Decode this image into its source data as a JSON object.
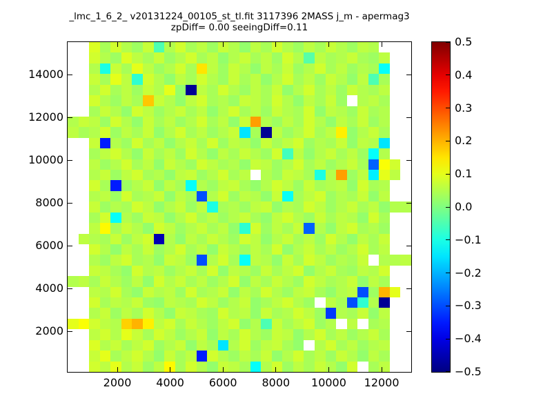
{
  "title": {
    "line1": "_lmc_1_6_2_ v20131224_00105_st_tl.fit 3117396 2MASS j_m - apermag3",
    "line2": "zpDiff= 0.00 seeingDiff=0.11"
  },
  "chart_data": {
    "type": "heatmap",
    "colormap": "jet",
    "xlabel": "",
    "ylabel": "",
    "xlim": [
      120,
      13120
    ],
    "ylim": [
      100,
      15520
    ],
    "x_ticks": [
      2000,
      4000,
      6000,
      8000,
      10000,
      12000
    ],
    "y_ticks": [
      2000,
      4000,
      6000,
      8000,
      10000,
      12000,
      14000
    ],
    "grid_on": false,
    "colorbar": {
      "vmin": -0.5,
      "vmax": 0.5,
      "tick_labels": [
        "0.5",
        "0.4",
        "0.3",
        "0.2",
        "0.1",
        "0.0",
        "−0.1",
        "−0.2",
        "−0.3",
        "−0.4",
        "−0.5"
      ]
    },
    "grid": {
      "n_cols": 32,
      "n_rows": 31,
      "values": [
        [
          null,
          null,
          0.09,
          0.04,
          0.08,
          0.05,
          0.03,
          0.07,
          -0.05,
          0.05,
          0.08,
          0.04,
          0.06,
          0.03,
          0.07,
          0.05,
          0.02,
          0.06,
          0.04,
          0.08,
          0.05,
          0.03,
          0.06,
          0.04,
          0.07,
          0.05,
          0.03,
          0.06,
          0.05,
          null,
          null,
          null
        ],
        [
          null,
          null,
          0.08,
          0.05,
          0.03,
          0.09,
          0.06,
          0.04,
          0.07,
          0.03,
          0.05,
          0.08,
          0.04,
          0.06,
          0.02,
          0.05,
          0.07,
          0.04,
          0.06,
          0.03,
          0.08,
          0.05,
          -0.04,
          0.06,
          0.04,
          0.05,
          0.07,
          0.04,
          0.03,
          0.06,
          null,
          null
        ],
        [
          null,
          null,
          0.05,
          -0.1,
          0.07,
          0.04,
          0.1,
          0.06,
          0.03,
          0.05,
          0.08,
          0.04,
          0.15,
          0.06,
          0.03,
          0.07,
          0.05,
          0.02,
          0.06,
          0.04,
          0.07,
          0.03,
          0.05,
          0.08,
          0.04,
          0.06,
          0.03,
          0.05,
          0.04,
          -0.12,
          null,
          null
        ],
        [
          null,
          null,
          0.07,
          0.04,
          0.1,
          0.06,
          -0.08,
          0.08,
          0.05,
          0.02,
          0.06,
          0.04,
          0.08,
          0.05,
          0.03,
          0.07,
          0.04,
          0.06,
          0.02,
          0.05,
          0.08,
          0.04,
          0.06,
          0.03,
          0.07,
          0.05,
          0.02,
          0.06,
          -0.05,
          0.04,
          null,
          null
        ],
        [
          null,
          null,
          0.05,
          0.08,
          0.04,
          0.06,
          0.03,
          0.07,
          0.05,
          0.1,
          0.02,
          -0.48,
          0.06,
          0.04,
          0.08,
          0.05,
          0.03,
          0.06,
          0.04,
          0.07,
          0.02,
          0.05,
          0.08,
          0.04,
          0.06,
          0.03,
          0.07,
          0.05,
          0.04,
          0.06,
          null,
          null
        ],
        [
          null,
          null,
          0.08,
          0.05,
          0.03,
          0.06,
          0.04,
          0.18,
          0.07,
          0.05,
          0.02,
          0.06,
          0.08,
          0.04,
          0.05,
          0.03,
          0.07,
          0.06,
          0.04,
          0.08,
          0.05,
          0.02,
          0.06,
          0.04,
          0.07,
          0.03,
          null,
          0.05,
          0.06,
          0.04,
          null,
          null
        ],
        [
          null,
          null,
          0.04,
          0.07,
          0.05,
          0.02,
          0.08,
          0.06,
          0.03,
          0.05,
          0.07,
          0.04,
          0.06,
          0.02,
          0.05,
          0.08,
          0.04,
          0.06,
          0.03,
          0.07,
          0.05,
          0.04,
          0.08,
          0.02,
          0.06,
          0.05,
          0.03,
          0.07,
          0.04,
          0.05,
          null,
          null
        ],
        [
          0.05,
          0.07,
          0.06,
          0.03,
          0.08,
          0.05,
          0.02,
          0.07,
          0.04,
          0.06,
          0.03,
          0.05,
          0.08,
          0.04,
          0.06,
          0.02,
          0.07,
          0.22,
          0.05,
          0.03,
          0.06,
          0.04,
          0.08,
          0.05,
          0.02,
          0.06,
          0.04,
          0.07,
          0.03,
          0.05,
          null,
          null
        ],
        [
          0.06,
          0.04,
          0.05,
          0.08,
          0.03,
          0.06,
          0.04,
          0.07,
          0.02,
          0.05,
          0.08,
          0.04,
          0.06,
          0.03,
          0.05,
          0.07,
          -0.15,
          0.04,
          -0.48,
          0.06,
          0.03,
          0.05,
          0.08,
          0.04,
          0.06,
          0.14,
          0.02,
          0.05,
          0.07,
          0.04,
          null,
          null
        ],
        [
          null,
          null,
          0.07,
          -0.35,
          0.05,
          0.03,
          0.08,
          0.04,
          0.06,
          0.02,
          0.05,
          0.07,
          0.04,
          0.08,
          0.03,
          0.06,
          0.05,
          0.02,
          0.07,
          0.04,
          0.06,
          0.08,
          0.03,
          0.05,
          0.04,
          0.07,
          0.02,
          0.06,
          0.05,
          -0.15,
          null,
          null
        ],
        [
          null,
          null,
          0.04,
          0.06,
          0.08,
          0.05,
          0.02,
          0.07,
          0.04,
          0.06,
          0.03,
          0.08,
          0.05,
          0.02,
          0.06,
          0.04,
          0.07,
          0.05,
          0.03,
          0.08,
          -0.06,
          0.06,
          0.02,
          0.05,
          0.07,
          0.04,
          0.06,
          0.03,
          -0.12,
          0.05,
          null,
          null
        ],
        [
          null,
          null,
          0.06,
          0.03,
          0.05,
          0.08,
          0.04,
          0.06,
          0.02,
          0.07,
          0.05,
          0.03,
          0.08,
          0.06,
          0.04,
          0.05,
          0.02,
          0.07,
          0.06,
          0.03,
          0.05,
          0.08,
          0.04,
          0.06,
          0.03,
          0.05,
          0.07,
          0.04,
          -0.28,
          0.12,
          0.08,
          null
        ],
        [
          null,
          null,
          0.05,
          0.07,
          0.03,
          0.06,
          0.08,
          0.04,
          0.05,
          0.02,
          0.06,
          0.07,
          0.03,
          0.05,
          0.08,
          0.04,
          0.06,
          null,
          0.05,
          0.03,
          0.07,
          0.06,
          0.04,
          -0.1,
          0.05,
          0.22,
          0.03,
          0.06,
          -0.14,
          0.1,
          0.06,
          null
        ],
        [
          null,
          null,
          0.08,
          0.04,
          -0.35,
          0.03,
          0.05,
          0.07,
          0.02,
          0.06,
          0.04,
          -0.12,
          0.05,
          0.03,
          0.06,
          0.07,
          0.04,
          0.02,
          0.05,
          0.08,
          0.06,
          0.03,
          0.07,
          0.04,
          0.05,
          0.06,
          0.02,
          0.08,
          0.04,
          0.05,
          null,
          null
        ],
        [
          null,
          null,
          0.05,
          0.06,
          0.03,
          0.08,
          0.04,
          0.05,
          0.07,
          0.02,
          0.06,
          0.04,
          -0.3,
          0.05,
          0.08,
          0.03,
          0.06,
          0.05,
          0.02,
          0.07,
          -0.12,
          0.04,
          0.06,
          0.08,
          0.03,
          0.05,
          0.04,
          0.07,
          0.02,
          0.06,
          null,
          null
        ],
        [
          null,
          null,
          0.07,
          0.03,
          0.05,
          0.04,
          0.08,
          0.06,
          0.02,
          0.05,
          0.07,
          0.03,
          0.06,
          -0.1,
          0.04,
          0.05,
          0.03,
          0.06,
          0.07,
          0.02,
          0.05,
          0.04,
          0.08,
          0.06,
          0.03,
          0.05,
          0.07,
          0.04,
          0.06,
          0.02,
          0.05,
          0.05
        ],
        [
          null,
          null,
          0.04,
          0.08,
          -0.12,
          0.05,
          0.03,
          0.07,
          0.06,
          0.02,
          0.05,
          0.08,
          0.04,
          0.06,
          0.03,
          0.05,
          0.07,
          0.04,
          0.02,
          0.06,
          0.08,
          0.05,
          0.03,
          0.07,
          0.04,
          0.06,
          0.05,
          0.02,
          0.08,
          0.04,
          null,
          null
        ],
        [
          null,
          null,
          0.06,
          0.13,
          0.04,
          0.07,
          0.05,
          0.02,
          0.08,
          0.06,
          0.03,
          0.05,
          0.07,
          0.04,
          0.06,
          0.02,
          -0.08,
          0.08,
          0.03,
          0.06,
          0.04,
          0.07,
          -0.28,
          0.05,
          0.02,
          0.06,
          0.08,
          0.04,
          0.05,
          0.03,
          null,
          null
        ],
        [
          null,
          0.06,
          0.05,
          0.04,
          0.07,
          0.03,
          0.06,
          0.08,
          -0.45,
          0.05,
          0.02,
          0.06,
          0.04,
          0.07,
          0.05,
          0.03,
          0.08,
          0.06,
          0.02,
          0.05,
          0.07,
          0.04,
          0.06,
          0.03,
          0.08,
          0.05,
          0.02,
          0.06,
          0.04,
          0.07,
          null,
          null
        ],
        [
          null,
          null,
          0.08,
          0.05,
          0.02,
          0.06,
          0.04,
          0.07,
          0.03,
          0.05,
          0.08,
          0.04,
          0.06,
          0.02,
          0.07,
          0.05,
          0.03,
          0.06,
          0.04,
          0.08,
          0.02,
          0.05,
          0.07,
          0.04,
          0.06,
          0.03,
          0.05,
          0.08,
          0.04,
          0.06,
          null,
          null
        ],
        [
          null,
          null,
          0.05,
          0.03,
          0.06,
          0.08,
          0.04,
          0.05,
          0.02,
          0.07,
          0.06,
          0.03,
          -0.3,
          0.05,
          0.08,
          0.04,
          -0.12,
          0.06,
          0.05,
          0.02,
          0.07,
          0.04,
          0.08,
          0.06,
          0.03,
          0.05,
          0.04,
          0.07,
          null,
          0.05,
          0.05,
          0.06
        ],
        [
          null,
          null,
          0.07,
          0.06,
          0.04,
          0.02,
          0.08,
          0.05,
          0.06,
          0.03,
          0.05,
          0.07,
          0.04,
          0.08,
          0.02,
          0.06,
          0.05,
          0.03,
          0.07,
          0.04,
          0.06,
          0.08,
          0.02,
          0.05,
          0.07,
          0.04,
          0.03,
          0.06,
          0.05,
          0.08,
          null,
          null
        ],
        [
          0.05,
          0.06,
          0.04,
          0.07,
          0.05,
          0.03,
          0.06,
          0.02,
          0.08,
          0.05,
          0.07,
          0.04,
          0.06,
          0.03,
          0.05,
          0.08,
          0.02,
          0.06,
          0.04,
          0.07,
          0.05,
          0.03,
          0.08,
          0.06,
          0.04,
          0.05,
          0.07,
          0.02,
          0.06,
          0.04,
          null,
          null
        ],
        [
          null,
          null,
          0.06,
          0.05,
          0.08,
          0.04,
          0.02,
          0.07,
          0.05,
          0.06,
          0.03,
          0.08,
          0.04,
          0.05,
          0.07,
          0.02,
          0.06,
          0.04,
          0.08,
          0.05,
          0.03,
          0.06,
          0.07,
          0.04,
          0.02,
          0.05,
          0.06,
          -0.3,
          0.03,
          0.2,
          0.1,
          null
        ],
        [
          null,
          null,
          0.08,
          0.04,
          0.06,
          0.05,
          0.07,
          0.03,
          0.02,
          0.06,
          0.05,
          0.04,
          0.08,
          0.06,
          0.03,
          0.05,
          0.07,
          0.02,
          0.04,
          0.06,
          0.08,
          0.05,
          0.03,
          null,
          0.06,
          0.04,
          -0.3,
          -0.08,
          0.05,
          -0.48,
          null,
          null
        ],
        [
          null,
          null,
          0.05,
          0.07,
          0.03,
          0.06,
          0.04,
          0.08,
          0.05,
          0.02,
          0.07,
          0.06,
          0.04,
          0.03,
          0.08,
          0.05,
          0.06,
          0.02,
          0.07,
          0.04,
          0.05,
          0.08,
          0.06,
          0.03,
          -0.32,
          0.05,
          0.04,
          0.07,
          0.02,
          0.06,
          null,
          null
        ],
        [
          0.1,
          0.12,
          0.08,
          0.06,
          0.05,
          0.17,
          0.2,
          0.14,
          0.06,
          0.08,
          0.04,
          0.07,
          0.05,
          0.03,
          0.06,
          0.08,
          0.02,
          0.05,
          -0.05,
          0.07,
          0.04,
          0.06,
          0.08,
          0.03,
          0.05,
          null,
          0.06,
          null,
          0.04,
          0.05,
          null,
          null
        ],
        [
          null,
          null,
          0.06,
          0.08,
          0.05,
          0.1,
          0.07,
          0.04,
          0.08,
          0.06,
          0.03,
          0.05,
          0.07,
          0.02,
          0.06,
          0.04,
          0.08,
          0.05,
          0.03,
          0.07,
          0.06,
          0.02,
          0.05,
          0.08,
          0.04,
          0.06,
          0.03,
          0.05,
          0.07,
          0.04,
          null,
          null
        ],
        [
          null,
          null,
          0.09,
          0.05,
          0.07,
          0.04,
          0.06,
          0.08,
          0.03,
          0.05,
          0.07,
          0.02,
          0.06,
          0.04,
          -0.15,
          0.05,
          0.08,
          0.03,
          0.06,
          0.07,
          0.04,
          0.02,
          null,
          0.05,
          0.08,
          0.04,
          0.06,
          0.03,
          0.05,
          0.06,
          null,
          null
        ],
        [
          null,
          null,
          0.07,
          0.1,
          0.04,
          0.06,
          0.08,
          0.05,
          0.02,
          0.07,
          0.04,
          0.06,
          -0.35,
          0.08,
          0.05,
          0.03,
          0.06,
          0.04,
          0.07,
          0.02,
          0.05,
          0.08,
          0.04,
          0.06,
          0.03,
          0.07,
          0.05,
          0.02,
          0.06,
          0.04,
          null,
          null
        ],
        [
          null,
          null,
          0.08,
          0.06,
          0.1,
          0.05,
          0.07,
          0.03,
          0.06,
          0.13,
          0.04,
          0.08,
          0.05,
          0.02,
          0.07,
          0.06,
          0.04,
          -0.12,
          0.05,
          0.08,
          0.03,
          0.06,
          0.04,
          0.07,
          0.05,
          0.02,
          0.08,
          null,
          0.04,
          0.06,
          null,
          null
        ]
      ]
    }
  }
}
